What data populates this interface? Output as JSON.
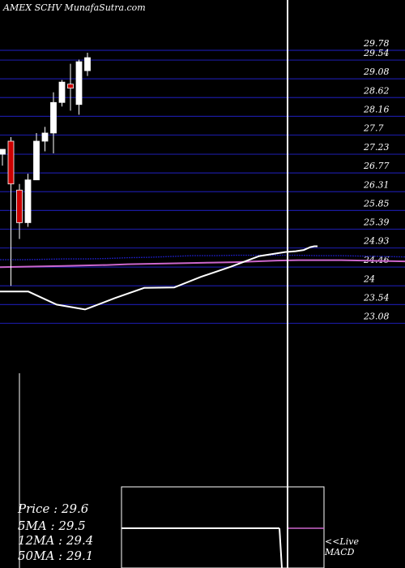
{
  "header": {
    "title": "AMEX  SCHV MunafaSutra.com"
  },
  "info": {
    "price": "Price   : 29.6",
    "ma5": "5MA : 29.5",
    "ma12": "12MA : 29.4",
    "ma50": "50MA : 29.1"
  },
  "macd": {
    "line1": "<<Live",
    "line2": "MACD"
  },
  "colors": {
    "background": "#000000",
    "grid": "#1a1a9e",
    "up_candle": "#ffffff",
    "down_candle": "#cc0000",
    "ma_short": "#1a1aa8",
    "ma_long": "#cc66cc",
    "macd_line": "#ffffff"
  },
  "chart_data": {
    "type": "candlestick",
    "title": "AMEX  SCHV MunafaSutra.com",
    "y_ticks": [
      "29.78",
      "29.54",
      "29.08",
      "28.62",
      "28.16",
      "27.7",
      "27.23",
      "26.77",
      "26.31",
      "25.85",
      "25.39",
      "24.93",
      "24.46",
      "24",
      "23.54",
      "23.08"
    ],
    "candles": [
      {
        "open": 27.23,
        "high": 27.35,
        "low": 26.95,
        "close": 27.35,
        "dir": "up"
      },
      {
        "open": 27.55,
        "high": 27.65,
        "low": 24.0,
        "close": 26.5,
        "dir": "down"
      },
      {
        "open": 26.35,
        "high": 26.5,
        "low": 25.15,
        "close": 25.55,
        "dir": "down"
      },
      {
        "open": 25.55,
        "high": 26.75,
        "low": 25.45,
        "close": 26.6,
        "dir": "up"
      },
      {
        "open": 26.6,
        "high": 27.75,
        "low": 26.6,
        "close": 27.55,
        "dir": "up"
      },
      {
        "open": 27.55,
        "high": 27.9,
        "low": 27.3,
        "close": 27.75,
        "dir": "up"
      },
      {
        "open": 27.75,
        "high": 28.75,
        "low": 27.25,
        "close": 28.5,
        "dir": "up"
      },
      {
        "open": 28.5,
        "high": 29.05,
        "low": 28.4,
        "close": 29.0,
        "dir": "up"
      },
      {
        "open": 28.95,
        "high": 29.45,
        "low": 28.3,
        "close": 28.85,
        "dir": "down"
      },
      {
        "open": 28.45,
        "high": 29.55,
        "low": 28.2,
        "close": 29.5,
        "dir": "up"
      },
      {
        "open": 29.28,
        "high": 29.72,
        "low": 29.15,
        "close": 29.6,
        "dir": "up"
      }
    ],
    "ma_short": [
      24.64,
      24.64,
      24.65,
      24.66,
      24.66,
      24.67,
      24.69,
      24.7,
      24.72,
      24.74,
      24.74,
      24.75,
      24.75,
      24.75,
      24.75,
      24.74,
      24.74,
      24.73,
      24.72,
      24.71
    ],
    "ma_long": [
      24.46,
      24.47,
      24.48,
      24.49,
      24.5,
      24.51,
      24.53,
      24.54,
      24.55,
      24.56,
      24.57,
      24.58,
      24.6,
      24.62,
      24.63,
      24.63,
      24.63,
      24.62,
      24.61,
      24.6
    ],
    "macd_line": [
      23.86,
      23.86,
      23.54,
      23.42,
      23.7,
      23.95,
      23.96,
      24.22,
      24.47,
      24.73,
      24.83,
      24.85,
      24.88,
      24.95,
      24.97,
      24.97
    ],
    "grid": true
  }
}
